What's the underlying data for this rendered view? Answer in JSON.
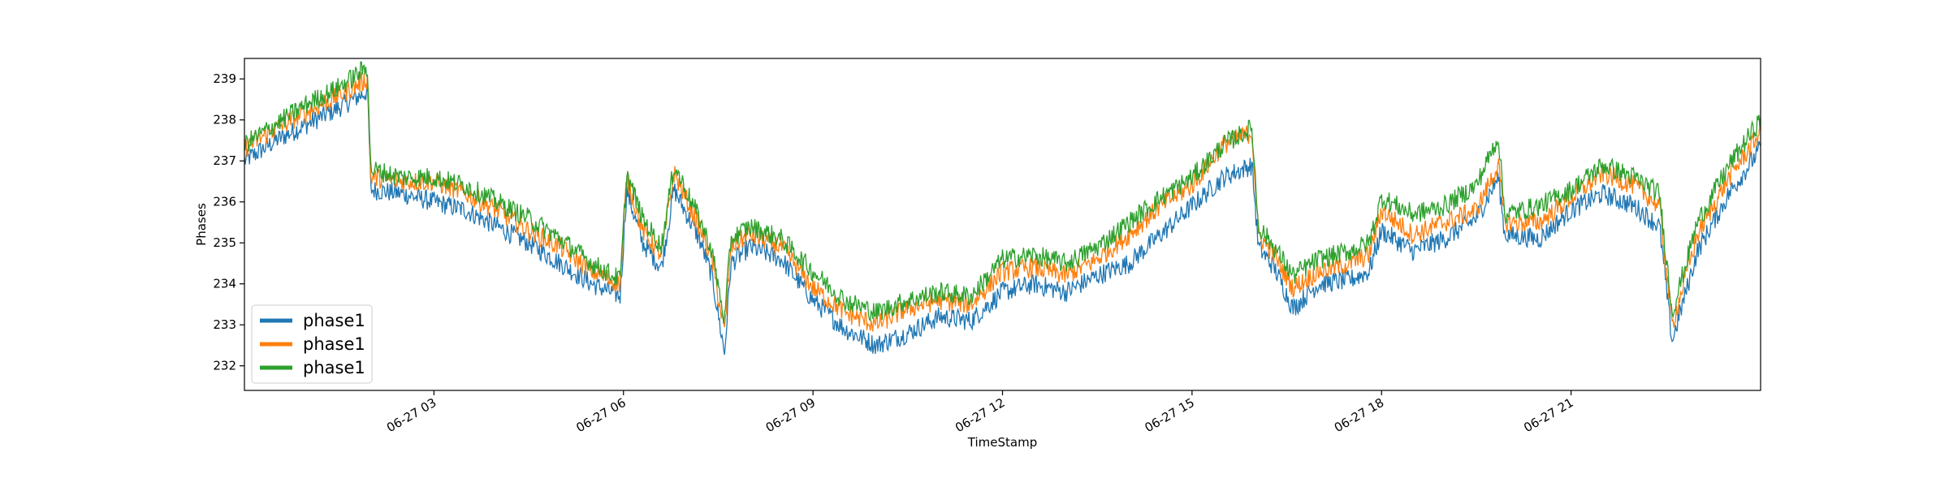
{
  "chart_data": {
    "type": "line",
    "title": "",
    "xlabel": "TimeStamp",
    "ylabel": "Phases",
    "x_start": "06-27 00:00",
    "x_end": "06-27 24:00",
    "xlim_hours": [
      0,
      24
    ],
    "ylim": [
      231.4,
      239.5
    ],
    "x_ticks": [
      {
        "hour": 3,
        "label": "06-27 03"
      },
      {
        "hour": 6,
        "label": "06-27 06"
      },
      {
        "hour": 9,
        "label": "06-27 09"
      },
      {
        "hour": 12,
        "label": "06-27 12"
      },
      {
        "hour": 15,
        "label": "06-27 15"
      },
      {
        "hour": 18,
        "label": "06-27 18"
      },
      {
        "hour": 21,
        "label": "06-27 21"
      }
    ],
    "y_ticks": [
      232,
      233,
      234,
      235,
      236,
      237,
      238,
      239
    ],
    "grid": false,
    "legend_position": "lower-left",
    "x_hours": [
      0,
      0.5,
      1,
      1.5,
      1.95,
      2.0,
      2.5,
      3,
      3.5,
      4,
      4.5,
      5,
      5.5,
      5.95,
      6.05,
      6.3,
      6.6,
      6.8,
      7.2,
      7.4,
      7.6,
      7.7,
      8,
      8.5,
      9,
      9.5,
      10,
      10.5,
      11,
      11.5,
      12,
      12.5,
      13,
      13.5,
      14,
      14.5,
      15,
      15.5,
      15.95,
      16.05,
      16.3,
      16.6,
      17,
      17.5,
      17.8,
      18,
      18.5,
      19,
      19.5,
      19.85,
      19.95,
      20.5,
      21,
      21.5,
      22,
      22.4,
      22.6,
      23,
      23.5,
      24
    ],
    "series": [
      {
        "name": "phase1",
        "color": "#1f77b4",
        "values": [
          237.0,
          237.5,
          237.9,
          238.3,
          238.7,
          236.3,
          236.2,
          236.0,
          235.8,
          235.4,
          235.0,
          234.5,
          234.0,
          233.7,
          236.3,
          235.0,
          234.4,
          236.3,
          235.1,
          234.2,
          232.3,
          234.5,
          234.9,
          234.6,
          233.6,
          232.9,
          232.5,
          232.8,
          233.2,
          233.1,
          233.8,
          234.0,
          233.8,
          234.2,
          234.5,
          235.2,
          235.9,
          236.6,
          236.9,
          234.9,
          234.4,
          233.4,
          234.0,
          234.1,
          234.3,
          235.3,
          234.8,
          235.1,
          235.6,
          236.6,
          235.2,
          235.1,
          235.8,
          236.2,
          235.9,
          235.4,
          232.6,
          234.8,
          236.2,
          237.3
        ]
      },
      {
        "name": "phase1",
        "color": "#ff7f0e",
        "values": [
          237.3,
          237.8,
          238.2,
          238.6,
          239.0,
          236.6,
          236.5,
          236.5,
          236.2,
          235.8,
          235.3,
          234.9,
          234.3,
          234.0,
          236.6,
          235.3,
          234.7,
          236.7,
          235.4,
          234.6,
          232.8,
          234.9,
          235.2,
          234.9,
          233.9,
          233.3,
          233.0,
          233.4,
          233.6,
          233.5,
          234.3,
          234.4,
          234.2,
          234.6,
          235.2,
          235.9,
          236.4,
          237.4,
          237.7,
          235.2,
          234.7,
          233.9,
          234.3,
          234.5,
          234.7,
          235.8,
          235.2,
          235.5,
          235.8,
          236.9,
          235.5,
          235.5,
          236.1,
          236.7,
          236.4,
          235.9,
          233.0,
          235.2,
          236.6,
          237.7
        ]
      },
      {
        "name": "phase1",
        "color": "#2ca02c",
        "values": [
          237.4,
          237.9,
          238.4,
          238.8,
          239.3,
          236.8,
          236.6,
          236.6,
          236.4,
          236.0,
          235.6,
          235.1,
          234.5,
          234.1,
          236.7,
          235.6,
          234.9,
          236.9,
          235.6,
          234.8,
          233.1,
          235.1,
          235.4,
          235.1,
          234.3,
          233.6,
          233.3,
          233.6,
          233.8,
          233.7,
          234.6,
          234.7,
          234.5,
          234.9,
          235.5,
          236.1,
          236.6,
          237.4,
          237.8,
          235.4,
          234.9,
          234.2,
          234.6,
          234.8,
          235.0,
          236.1,
          235.7,
          235.9,
          236.4,
          237.6,
          235.7,
          235.9,
          236.3,
          236.9,
          236.6,
          236.2,
          233.3,
          235.5,
          236.9,
          238.0
        ]
      }
    ]
  }
}
